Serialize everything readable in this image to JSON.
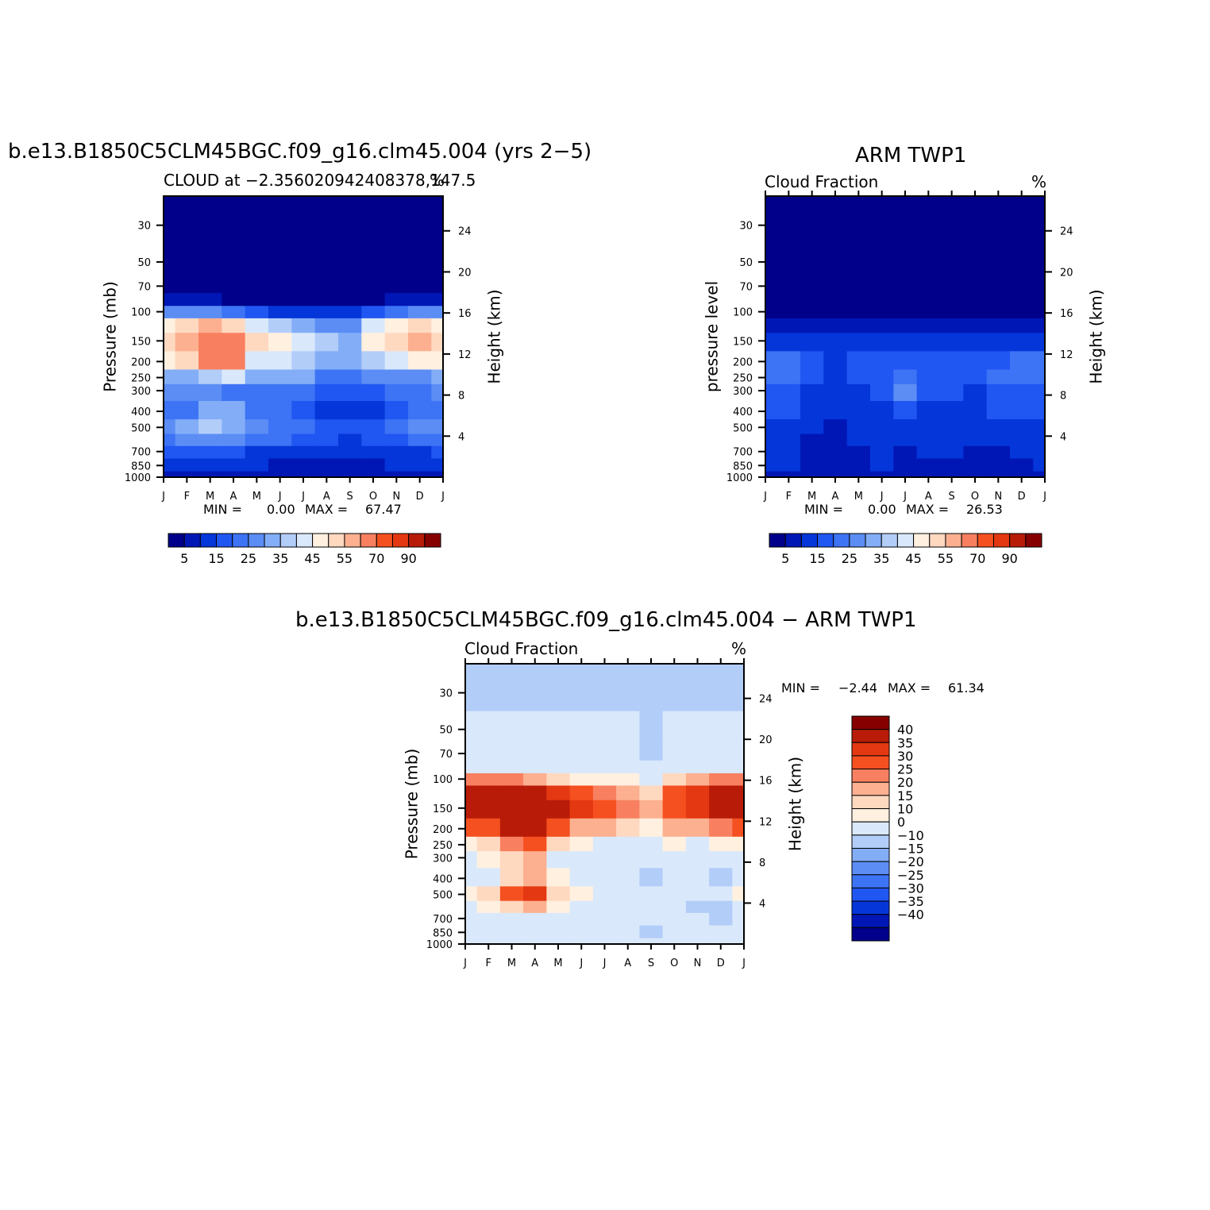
{
  "chart_data": [
    {
      "type": "heatmap",
      "title": "b.e13.B1850C5CLM45BGC.f09_g16.clm45.004 (yrs 2−5)",
      "left_string": "CLOUD at −2.356020942408378,147.5",
      "right_string": "%",
      "ylabel": "Pressure (mb)",
      "ylabel_right": "Height (km)",
      "x_ticks": [
        "J",
        "F",
        "M",
        "A",
        "M",
        "J",
        "J",
        "A",
        "S",
        "O",
        "N",
        "D",
        "J"
      ],
      "y_ticks": [
        "30",
        "50",
        "70",
        "100",
        "150",
        "200",
        "250",
        "300",
        "400",
        "500",
        "700",
        "850",
        "1000"
      ],
      "y_right_ticks": [
        "24",
        "20",
        "16",
        "12",
        "8",
        "4"
      ],
      "y_scale": "log",
      "ylim": [
        1000,
        20
      ],
      "min_max": {
        "min_label": "MIN =",
        "min": "0.00",
        "max_label": "MAX =",
        "max": "67.47"
      },
      "colorbar": {
        "orientation": "horizontal",
        "levels": [
          "5",
          "10",
          "15",
          "20",
          "25",
          "30",
          "35",
          "40",
          "45",
          "50",
          "55",
          "60",
          "70",
          "80",
          "90"
        ],
        "labels": [
          "5",
          "15",
          "25",
          "35",
          "45",
          "55",
          "70",
          "90"
        ],
        "colors": [
          "#00008a",
          "#0017b6",
          "#0536d9",
          "#2056f1",
          "#3d73f5",
          "#5b8df5",
          "#83aef7",
          "#b3cdf9",
          "#d9e9fb",
          "#fff0e0",
          "#ffd8c0",
          "#fcb090",
          "#f88060",
          "#f55020",
          "#e33811",
          "#b81c08",
          "#870000"
        ]
      },
      "profiles_estimated": {
        "levels_mb": [
          20,
          30,
          50,
          70,
          85,
          100,
          120,
          150,
          200,
          250,
          300,
          400,
          500,
          600,
          700,
          850,
          1000
        ],
        "months": [
          "Jan",
          "Feb",
          "Mar",
          "Apr",
          "May",
          "Jun",
          "Jul",
          "Aug",
          "Sep",
          "Oct",
          "Nov",
          "Dec",
          "Jan"
        ],
        "values": [
          [
            0,
            0,
            0,
            0,
            5,
            25,
            45,
            52,
            45,
            30,
            25,
            22,
            28,
            22,
            15,
            12,
            5
          ],
          [
            0,
            0,
            0,
            0,
            6,
            28,
            52,
            58,
            50,
            32,
            25,
            24,
            32,
            25,
            15,
            12,
            5
          ],
          [
            0,
            0,
            0,
            0,
            6,
            25,
            55,
            65,
            60,
            38,
            26,
            30,
            38,
            28,
            15,
            12,
            5
          ],
          [
            0,
            0,
            0,
            0,
            4,
            20,
            50,
            65,
            62,
            40,
            24,
            30,
            32,
            28,
            15,
            10,
            5
          ],
          [
            0,
            0,
            0,
            0,
            3,
            18,
            42,
            50,
            42,
            30,
            22,
            24,
            28,
            22,
            14,
            10,
            5
          ],
          [
            0,
            0,
            0,
            0,
            2,
            14,
            35,
            46,
            42,
            30,
            22,
            20,
            24,
            20,
            14,
            9,
            5
          ],
          [
            0,
            0,
            0,
            0,
            2,
            12,
            32,
            40,
            38,
            30,
            20,
            16,
            20,
            18,
            12,
            8,
            5
          ],
          [
            0,
            0,
            0,
            0,
            2,
            12,
            28,
            35,
            32,
            24,
            18,
            14,
            18,
            16,
            12,
            8,
            5
          ],
          [
            0,
            0,
            0,
            0,
            2,
            10,
            25,
            32,
            30,
            22,
            16,
            12,
            16,
            14,
            10,
            8,
            5
          ],
          [
            0,
            0,
            0,
            0,
            4,
            16,
            40,
            45,
            38,
            25,
            18,
            14,
            18,
            16,
            12,
            8,
            5
          ],
          [
            0,
            0,
            0,
            0,
            5,
            22,
            45,
            50,
            40,
            26,
            20,
            18,
            22,
            18,
            13,
            10,
            5
          ],
          [
            0,
            0,
            0,
            0,
            6,
            25,
            50,
            58,
            45,
            28,
            22,
            22,
            28,
            20,
            14,
            12,
            5
          ],
          [
            0,
            0,
            0,
            0,
            5,
            25,
            45,
            52,
            45,
            30,
            25,
            22,
            28,
            22,
            15,
            12,
            5
          ]
        ]
      }
    },
    {
      "type": "heatmap",
      "title": "ARM TWP1",
      "left_string": "Cloud Fraction",
      "right_string": "%",
      "ylabel": "pressure level",
      "ylabel_right": "Height (km)",
      "x_ticks": [
        "J",
        "F",
        "M",
        "A",
        "M",
        "J",
        "J",
        "A",
        "S",
        "O",
        "N",
        "D",
        "J"
      ],
      "y_ticks": [
        "30",
        "50",
        "70",
        "100",
        "150",
        "200",
        "250",
        "300",
        "400",
        "500",
        "700",
        "850",
        "1000"
      ],
      "y_right_ticks": [
        "24",
        "20",
        "16",
        "12",
        "8",
        "4"
      ],
      "y_scale": "log",
      "ylim": [
        1000,
        20
      ],
      "min_max": {
        "min_label": "MIN =",
        "min": "0.00",
        "max_label": "MAX =",
        "max": "26.53"
      },
      "colorbar": {
        "orientation": "horizontal",
        "levels": [
          "5",
          "10",
          "15",
          "20",
          "25",
          "30",
          "35",
          "40",
          "45",
          "50",
          "55",
          "60",
          "70",
          "80",
          "90"
        ],
        "labels": [
          "5",
          "15",
          "25",
          "35",
          "45",
          "55",
          "70",
          "90"
        ],
        "colors": [
          "#00008a",
          "#0017b6",
          "#0536d9",
          "#2056f1",
          "#3d73f5",
          "#5b8df5",
          "#83aef7",
          "#b3cdf9",
          "#d9e9fb",
          "#fff0e0",
          "#ffd8c0",
          "#fcb090",
          "#f88060",
          "#f55020",
          "#e33811",
          "#b81c08",
          "#870000"
        ]
      },
      "profiles_estimated": {
        "levels_mb": [
          20,
          30,
          50,
          70,
          85,
          100,
          120,
          150,
          200,
          250,
          300,
          400,
          500,
          600,
          700,
          850,
          1000
        ],
        "months": [
          "Jan",
          "Feb",
          "Mar",
          "Apr",
          "May",
          "Jun",
          "Jul",
          "Aug",
          "Sep",
          "Oct",
          "Nov",
          "Dec",
          "Jan"
        ],
        "values": [
          [
            0,
            0,
            0,
            0,
            0,
            0,
            8,
            12,
            22,
            22,
            18,
            16,
            14,
            12,
            11,
            10,
            5
          ],
          [
            0,
            0,
            0,
            0,
            0,
            0,
            9,
            12,
            22,
            20,
            16,
            15,
            13,
            11,
            10,
            10,
            5
          ],
          [
            0,
            0,
            0,
            0,
            0,
            0,
            8,
            12,
            16,
            15,
            14,
            13,
            12,
            8,
            7,
            8,
            5
          ],
          [
            0,
            0,
            0,
            0,
            0,
            0,
            6,
            10,
            14,
            14,
            13,
            10,
            8,
            7,
            7,
            8,
            5
          ],
          [
            0,
            0,
            0,
            0,
            0,
            0,
            5,
            10,
            15,
            15,
            14,
            13,
            12,
            10,
            9,
            9,
            5
          ],
          [
            0,
            0,
            0,
            0,
            0,
            0,
            5,
            11,
            17,
            16,
            15,
            14,
            13,
            11,
            10,
            10,
            5
          ],
          [
            0,
            0,
            0,
            0,
            0,
            0,
            5,
            11,
            19,
            24,
            25,
            16,
            13,
            11,
            9,
            8,
            5
          ],
          [
            0,
            0,
            0,
            0,
            0,
            0,
            6,
            11,
            18,
            17,
            16,
            14,
            13,
            12,
            10,
            9,
            5
          ],
          [
            0,
            0,
            0,
            0,
            0,
            0,
            7,
            12,
            17,
            16,
            15,
            14,
            13,
            11,
            10,
            9,
            5
          ],
          [
            0,
            0,
            0,
            0,
            0,
            0,
            7,
            12,
            16,
            15,
            14,
            13,
            12,
            10,
            8,
            8,
            5
          ],
          [
            0,
            0,
            0,
            0,
            0,
            0,
            8,
            12,
            18,
            20,
            18,
            15,
            13,
            10,
            8,
            8,
            5
          ],
          [
            0,
            0,
            0,
            0,
            0,
            0,
            9,
            12,
            20,
            21,
            18,
            16,
            14,
            12,
            10,
            9,
            5
          ],
          [
            0,
            0,
            0,
            0,
            0,
            0,
            8,
            12,
            22,
            22,
            18,
            16,
            14,
            12,
            11,
            10,
            5
          ]
        ]
      }
    },
    {
      "type": "heatmap",
      "title": "b.e13.B1850C5CLM45BGC.f09_g16.clm45.004 − ARM TWP1",
      "left_string": "Cloud Fraction",
      "right_string": "%",
      "ylabel": "Pressure (mb)",
      "ylabel_right": "Height (km)",
      "x_ticks": [
        "J",
        "F",
        "M",
        "A",
        "M",
        "J",
        "J",
        "A",
        "S",
        "O",
        "N",
        "D",
        "J"
      ],
      "y_ticks": [
        "30",
        "50",
        "70",
        "100",
        "150",
        "200",
        "250",
        "300",
        "400",
        "500",
        "700",
        "850",
        "1000"
      ],
      "y_right_ticks": [
        "24",
        "20",
        "16",
        "12",
        "8",
        "4"
      ],
      "y_scale": "log",
      "ylim": [
        1000,
        20
      ],
      "min_max": {
        "min_label": "MIN =",
        "min": "−2.44",
        "max_label": "MAX =",
        "max": "61.34"
      },
      "colorbar": {
        "orientation": "vertical",
        "levels": [
          "−40",
          "−35",
          "−30",
          "−25",
          "−20",
          "−15",
          "−10",
          "0",
          "10",
          "15",
          "20",
          "25",
          "30",
          "35",
          "40"
        ],
        "labels": [
          "−40",
          "−35",
          "−30",
          "−25",
          "−20",
          "−15",
          "−10",
          "0",
          "10",
          "15",
          "20",
          "25",
          "30",
          "35",
          "40"
        ],
        "colors": [
          "#00008a",
          "#0017b6",
          "#0536d9",
          "#2056f1",
          "#3d73f5",
          "#5b8df5",
          "#83aef7",
          "#b3cdf9",
          "#d9e9fb",
          "#fff0e0",
          "#ffd8c0",
          "#fcb090",
          "#f88060",
          "#f55020",
          "#e33811",
          "#b81c08",
          "#870000"
        ]
      },
      "profiles_estimated": {
        "levels_mb": [
          20,
          30,
          50,
          70,
          85,
          100,
          120,
          150,
          200,
          250,
          300,
          400,
          500,
          600,
          700,
          850,
          1000
        ],
        "months": [
          "Jan",
          "Feb",
          "Mar",
          "Apr",
          "May",
          "Jun",
          "Jul",
          "Aug",
          "Sep",
          "Oct",
          "Nov",
          "Dec",
          "Jan"
        ],
        "values": [
          [
            -1,
            -1,
            1,
            2,
            8,
            25,
            40,
            44,
            30,
            14,
            8,
            6,
            14,
            8,
            3,
            2,
            0
          ],
          [
            -1,
            -1,
            1,
            2,
            8,
            28,
            44,
            46,
            34,
            16,
            10,
            8,
            18,
            10,
            3,
            2,
            0
          ],
          [
            -1,
            -1,
            1,
            2,
            8,
            26,
            48,
            52,
            44,
            25,
            15,
            18,
            30,
            18,
            5,
            3,
            1
          ],
          [
            -1,
            -1,
            1,
            2,
            6,
            22,
            46,
            56,
            50,
            30,
            20,
            22,
            38,
            20,
            5,
            3,
            2
          ],
          [
            -1,
            -1,
            1,
            2,
            5,
            18,
            38,
            42,
            30,
            16,
            8,
            12,
            18,
            12,
            4,
            2,
            1
          ],
          [
            -1,
            -1,
            1,
            2,
            4,
            14,
            32,
            35,
            24,
            12,
            6,
            6,
            10,
            8,
            3,
            2,
            1
          ],
          [
            -1,
            -1,
            1,
            2,
            4,
            12,
            28,
            30,
            20,
            8,
            3,
            3,
            6,
            6,
            3,
            2,
            1
          ],
          [
            -1,
            -1,
            0,
            1,
            3,
            10,
            22,
            25,
            15,
            7,
            3,
            2,
            5,
            5,
            2,
            1,
            0
          ],
          [
            -1,
            -1,
            -1,
            -2,
            2,
            8,
            18,
            20,
            14,
            6,
            3,
            -1,
            4,
            4,
            2,
            -1,
            0
          ],
          [
            -1,
            -1,
            1,
            2,
            5,
            18,
            34,
            34,
            22,
            10,
            5,
            2,
            6,
            5,
            3,
            2,
            0
          ],
          [
            -1,
            -1,
            1,
            2,
            8,
            24,
            38,
            38,
            24,
            8,
            3,
            2,
            5,
            -1,
            2,
            2,
            0
          ],
          [
            -1,
            -1,
            1,
            2,
            9,
            26,
            42,
            44,
            26,
            10,
            5,
            -1,
            6,
            -1,
            -1,
            2,
            0
          ],
          [
            -1,
            -1,
            1,
            2,
            8,
            25,
            40,
            44,
            30,
            14,
            8,
            6,
            14,
            8,
            3,
            2,
            0
          ]
        ]
      }
    }
  ]
}
